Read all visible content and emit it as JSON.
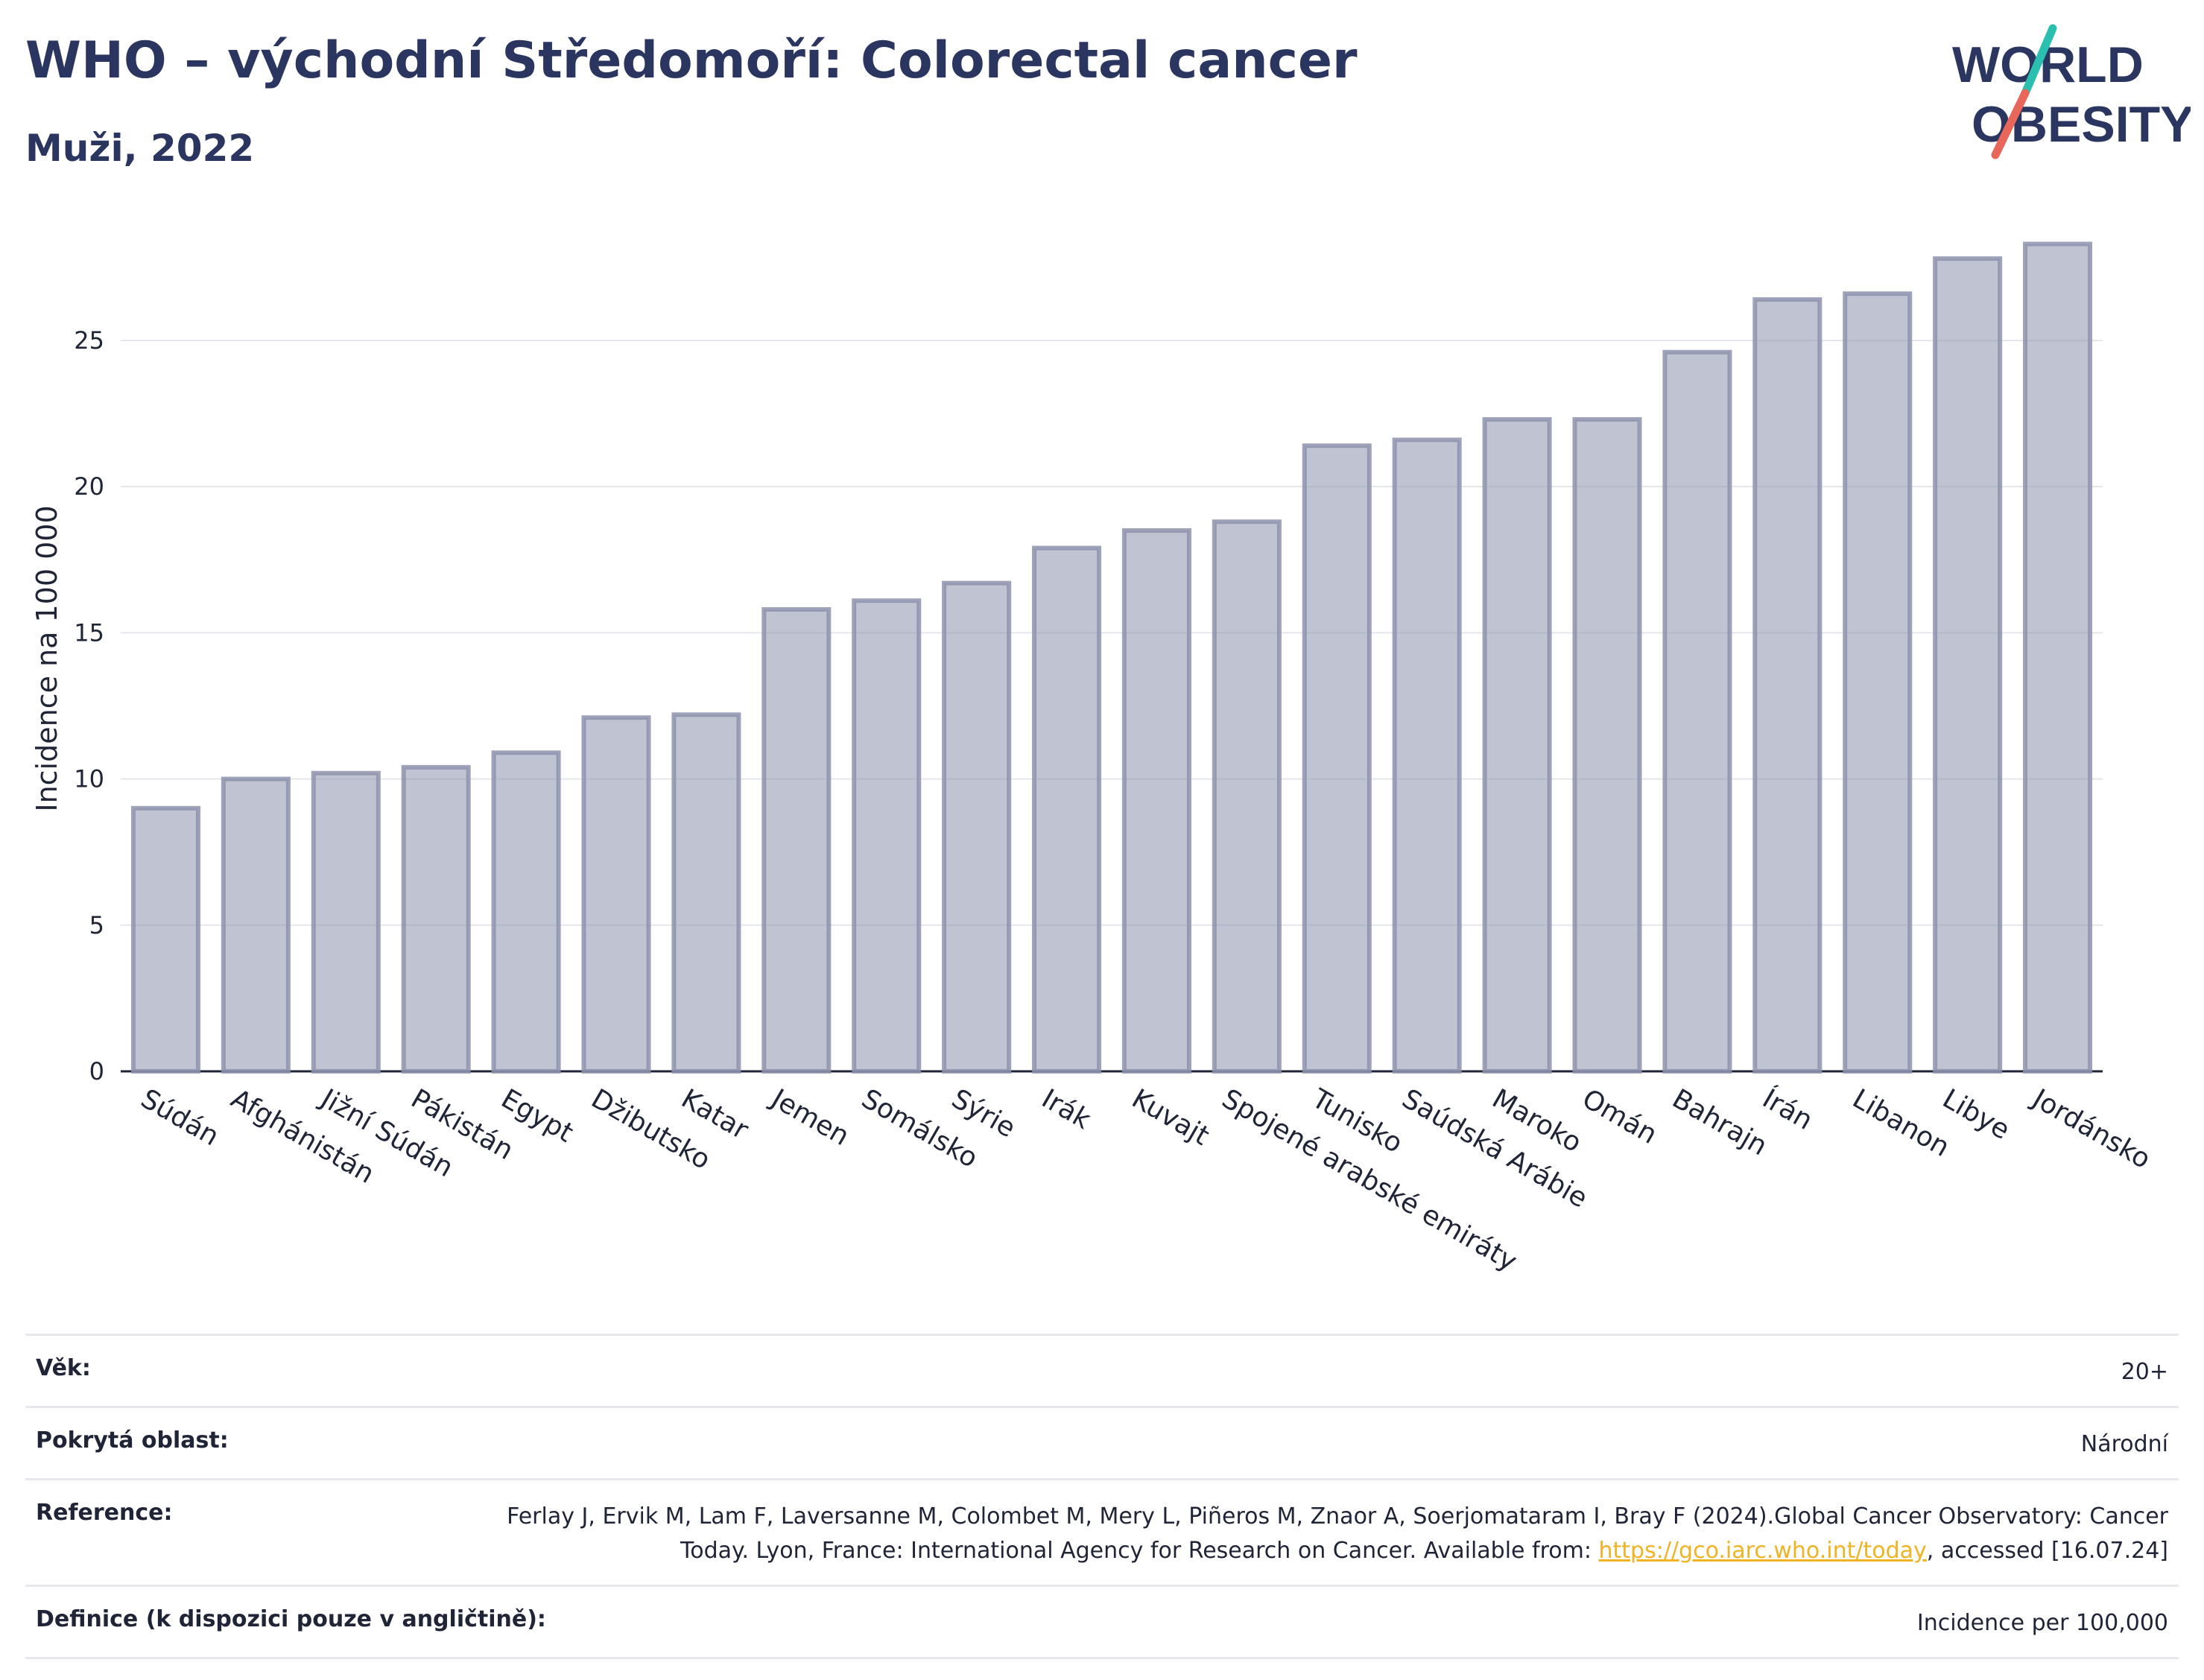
{
  "header": {
    "title": "WHO – východní Středomoří: Colorectal cancer",
    "subtitle": "Muži, 2022"
  },
  "logo": {
    "line1": "WORLD",
    "line2": "OBESITY",
    "brand_color": "#2b3660",
    "accent_teal": "#2bbfb0",
    "accent_red": "#e8665a"
  },
  "chart_data": {
    "type": "bar",
    "title": "WHO – východní Středomoří: Colorectal cancer",
    "subtitle": "Muži, 2022",
    "ylabel": "Incidence na 100 000",
    "xlabel": "",
    "ylim": [
      0,
      29
    ],
    "yticks": [
      0,
      5,
      10,
      15,
      20,
      25
    ],
    "grid": true,
    "bar_color": "#8d93ad",
    "categories": [
      "Súdán",
      "Afghánistán",
      "Jižní Súdán",
      "Pákistán",
      "Egypt",
      "Džibutsko",
      "Katar",
      "Jemen",
      "Somálsko",
      "Sýrie",
      "Irák",
      "Kuvajt",
      "Spojené arabské emiráty",
      "Tunisko",
      "Saúdská Arábie",
      "Maroko",
      "Omán",
      "Bahrajn",
      "Írán",
      "Libanon",
      "Libye",
      "Jordánsko"
    ],
    "values": [
      9.0,
      10.0,
      10.2,
      10.4,
      10.9,
      12.1,
      12.2,
      15.8,
      16.1,
      16.7,
      17.9,
      18.5,
      18.8,
      21.4,
      21.6,
      22.3,
      22.3,
      24.6,
      26.4,
      26.6,
      27.8,
      28.3
    ]
  },
  "info": {
    "age_label": "Věk:",
    "age_value": "20+",
    "coverage_label": "Pokrytá oblast:",
    "coverage_value": "Národní",
    "reference_label": "Reference:",
    "reference_text_1": "Ferlay J, Ervik M, Lam F, Laversanne M, Colombet M, Mery L, Piñeros M, Znaor A, Soerjomataram I, Bray F (2024).Global Cancer Observatory: Cancer Today. Lyon, France: International Agency for Research on Cancer. Available from: ",
    "reference_link": "https://gco.iarc.who.int/today",
    "reference_text_2": ", accessed [16.07.24]",
    "definition_label": "Definice (k dispozici pouze v angličtině):",
    "definition_value": "Incidence per 100,000"
  }
}
